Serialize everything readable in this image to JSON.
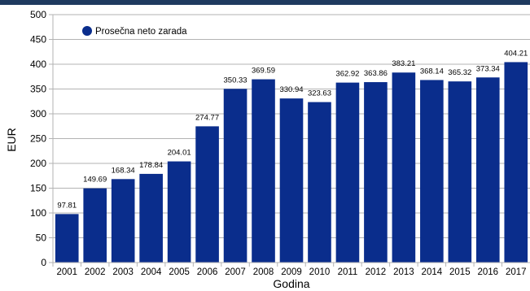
{
  "colors": {
    "bar": "#0a2d8c",
    "top_band": "#1f3a5f",
    "grid": "#b3b3b3",
    "axis": "#000000",
    "text": "#000000"
  },
  "chart_data": {
    "type": "bar",
    "categories": [
      "2001",
      "2002",
      "2003",
      "2004",
      "2005",
      "2006",
      "2007",
      "2008",
      "2009",
      "2010",
      "2011",
      "2012",
      "2013",
      "2014",
      "2015",
      "2016",
      "2017"
    ],
    "series": [
      {
        "name": "Prosečna neto zarada",
        "values": [
          97.81,
          149.69,
          168.34,
          178.84,
          204.01,
          274.77,
          350.33,
          369.59,
          330.94,
          323.63,
          362.92,
          363.86,
          383.21,
          368.14,
          365.32,
          373.34,
          404.21
        ]
      }
    ],
    "data_labels": [
      "97.81",
      "149.69",
      "168.34",
      "178.84",
      "204.01",
      "274.77",
      "350.33",
      "369.59",
      "330.94",
      "323.63",
      "362.92",
      "363.86",
      "383.21",
      "368.14",
      "365.32",
      "373.34",
      "404.21"
    ],
    "xlabel": "Godina",
    "ylabel": "EUR",
    "ylim": [
      0,
      500
    ],
    "yticks": [
      0,
      50,
      100,
      150,
      200,
      250,
      300,
      350,
      400,
      450,
      500
    ],
    "grid": true,
    "legend_position": "top-left"
  }
}
